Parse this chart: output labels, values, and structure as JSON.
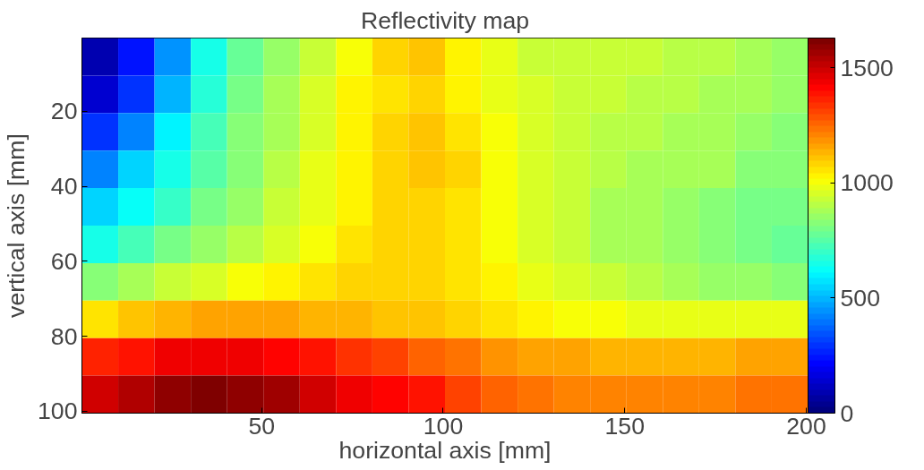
{
  "chart_data": {
    "type": "heatmap",
    "title": "Reflectivity map",
    "xlabel": "horizontal axis [mm]",
    "ylabel": "vertical axis [mm]",
    "x": [
      5.5,
      15.5,
      25.5,
      35.5,
      45.5,
      55.5,
      65.5,
      75.5,
      85.5,
      95.5,
      105.5,
      115.5,
      125.5,
      135.5,
      145.5,
      155.5,
      165.5,
      175.5,
      185.5,
      195.5
    ],
    "y": [
      5.5,
      15.5,
      25.5,
      35.5,
      45.5,
      55.5,
      65.5,
      75.5,
      85.5,
      95.5
    ],
    "xlim": [
      0.5,
      200.5
    ],
    "ylim": [
      100.5,
      0.5
    ],
    "xticks": [
      50,
      100,
      150,
      200
    ],
    "yticks": [
      20,
      40,
      60,
      80,
      100
    ],
    "clim": [
      0,
      1630
    ],
    "cticks": [
      0,
      500,
      1000,
      1500
    ],
    "grid": false,
    "cells": [
      [
        100,
        250,
        450,
        650,
        780,
        860,
        930,
        1000,
        1080,
        1100,
        1040,
        980,
        940,
        930,
        930,
        920,
        910,
        900,
        880,
        860
      ],
      [
        150,
        300,
        500,
        680,
        800,
        880,
        950,
        1020,
        1060,
        1080,
        1040,
        990,
        950,
        930,
        920,
        910,
        900,
        890,
        870,
        850
      ],
      [
        300,
        430,
        600,
        720,
        820,
        890,
        960,
        1030,
        1080,
        1100,
        1060,
        1000,
        950,
        920,
        910,
        900,
        890,
        880,
        860,
        840
      ],
      [
        420,
        540,
        650,
        750,
        840,
        900,
        970,
        1040,
        1090,
        1110,
        1070,
        1010,
        960,
        920,
        900,
        890,
        880,
        870,
        840,
        820
      ],
      [
        540,
        620,
        700,
        790,
        860,
        920,
        980,
        1040,
        1080,
        1090,
        1060,
        1010,
        960,
        920,
        890,
        870,
        860,
        840,
        810,
        790
      ],
      [
        650,
        720,
        790,
        850,
        900,
        950,
        1000,
        1050,
        1070,
        1080,
        1050,
        1010,
        960,
        920,
        890,
        870,
        850,
        820,
        790,
        770
      ],
      [
        820,
        870,
        920,
        960,
        1000,
        1030,
        1060,
        1070,
        1080,
        1080,
        1060,
        1020,
        980,
        950,
        920,
        900,
        880,
        860,
        850,
        840
      ],
      [
        1050,
        1100,
        1130,
        1150,
        1160,
        1150,
        1140,
        1130,
        1120,
        1110,
        1090,
        1060,
        1030,
        1010,
        1000,
        990,
        980,
        970,
        970,
        980
      ],
      [
        1350,
        1400,
        1430,
        1450,
        1450,
        1420,
        1380,
        1340,
        1300,
        1270,
        1230,
        1190,
        1160,
        1150,
        1140,
        1140,
        1140,
        1140,
        1150,
        1160
      ],
      [
        1500,
        1550,
        1580,
        1610,
        1600,
        1560,
        1500,
        1450,
        1420,
        1390,
        1320,
        1260,
        1230,
        1220,
        1220,
        1220,
        1220,
        1220,
        1230,
        1230
      ]
    ]
  }
}
